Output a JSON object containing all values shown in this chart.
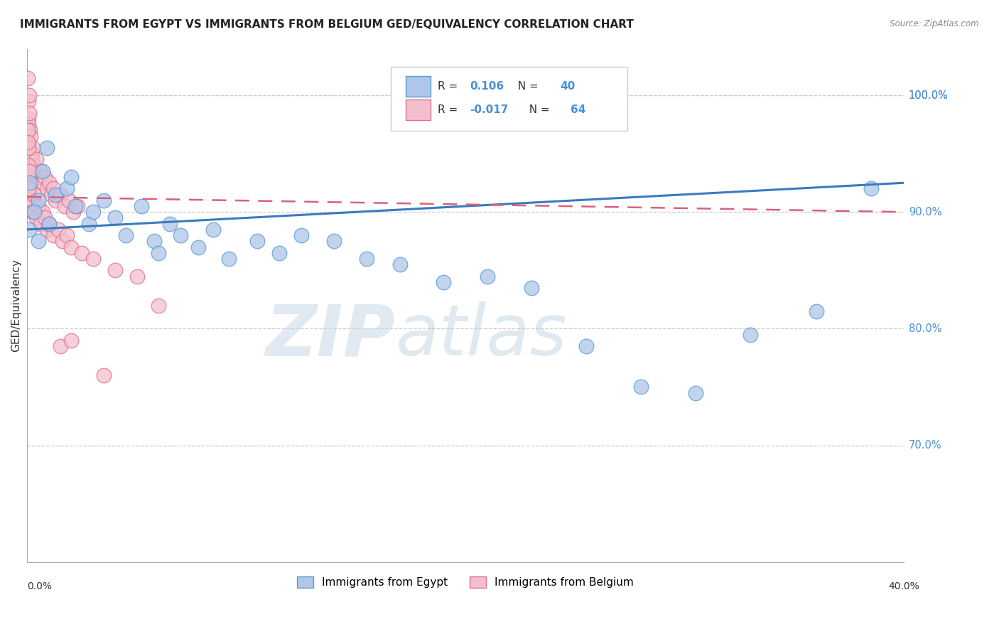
{
  "title": "IMMIGRANTS FROM EGYPT VS IMMIGRANTS FROM BELGIUM GED/EQUIVALENCY CORRELATION CHART",
  "source": "Source: ZipAtlas.com",
  "ylabel": "GED/Equivalency",
  "yticks": [
    70.0,
    80.0,
    90.0,
    100.0
  ],
  "ytick_labels": [
    "70.0%",
    "80.0%",
    "90.0%",
    "100.0%"
  ],
  "xmin": 0.0,
  "xmax": 40.0,
  "ymin": 60.0,
  "ymax": 104.0,
  "legend_r_egypt": "0.106",
  "legend_n_egypt": "40",
  "legend_r_belgium": "-0.017",
  "legend_n_belgium": "64",
  "egypt_color": "#aec6e8",
  "egypt_color_edge": "#5b9bd5",
  "belgium_color": "#f4bfcc",
  "belgium_color_edge": "#e07090",
  "trend_egypt_color": "#3a7abf",
  "trend_belgium_color": "#d9607a",
  "watermark_zip": "ZIP",
  "watermark_atlas": "atlas",
  "egypt_scatter": [
    [
      0.08,
      88.5
    ],
    [
      0.12,
      92.5
    ],
    [
      0.5,
      91.0
    ],
    [
      0.9,
      95.5
    ],
    [
      1.3,
      91.5
    ],
    [
      1.8,
      92.0
    ],
    [
      0.3,
      90.0
    ],
    [
      0.7,
      93.5
    ],
    [
      2.2,
      90.5
    ],
    [
      2.8,
      89.0
    ],
    [
      2.0,
      93.0
    ],
    [
      3.5,
      91.0
    ],
    [
      4.0,
      89.5
    ],
    [
      4.5,
      88.0
    ],
    [
      5.2,
      90.5
    ],
    [
      5.8,
      87.5
    ],
    [
      6.5,
      89.0
    ],
    [
      7.0,
      88.0
    ],
    [
      7.8,
      87.0
    ],
    [
      8.5,
      88.5
    ],
    [
      9.2,
      86.0
    ],
    [
      10.5,
      87.5
    ],
    [
      11.5,
      86.5
    ],
    [
      12.5,
      88.0
    ],
    [
      14.0,
      87.5
    ],
    [
      15.5,
      86.0
    ],
    [
      17.0,
      85.5
    ],
    [
      19.0,
      84.0
    ],
    [
      21.0,
      84.5
    ],
    [
      23.0,
      83.5
    ],
    [
      25.5,
      78.5
    ],
    [
      28.0,
      75.0
    ],
    [
      30.5,
      74.5
    ],
    [
      33.0,
      79.5
    ],
    [
      36.0,
      81.5
    ],
    [
      38.5,
      92.0
    ],
    [
      1.0,
      89.0
    ],
    [
      0.5,
      87.5
    ],
    [
      3.0,
      90.0
    ],
    [
      6.0,
      86.5
    ]
  ],
  "belgium_scatter": [
    [
      0.03,
      101.5
    ],
    [
      0.06,
      99.5
    ],
    [
      0.04,
      98.0
    ],
    [
      0.08,
      100.0
    ],
    [
      0.05,
      97.5
    ],
    [
      0.1,
      98.5
    ],
    [
      0.07,
      96.0
    ],
    [
      0.12,
      97.0
    ],
    [
      0.09,
      95.5
    ],
    [
      0.15,
      96.5
    ],
    [
      0.2,
      95.0
    ],
    [
      0.18,
      94.5
    ],
    [
      0.25,
      95.5
    ],
    [
      0.3,
      94.0
    ],
    [
      0.35,
      93.5
    ],
    [
      0.4,
      94.5
    ],
    [
      0.5,
      93.0
    ],
    [
      0.6,
      93.5
    ],
    [
      0.7,
      92.5
    ],
    [
      0.8,
      93.0
    ],
    [
      0.9,
      92.0
    ],
    [
      1.0,
      92.5
    ],
    [
      1.1,
      91.5
    ],
    [
      1.2,
      92.0
    ],
    [
      1.3,
      91.0
    ],
    [
      1.5,
      91.5
    ],
    [
      1.7,
      90.5
    ],
    [
      1.9,
      91.0
    ],
    [
      2.1,
      90.0
    ],
    [
      2.3,
      90.5
    ],
    [
      0.03,
      97.0
    ],
    [
      0.04,
      95.5
    ],
    [
      0.05,
      94.0
    ],
    [
      0.06,
      93.0
    ],
    [
      0.07,
      92.5
    ],
    [
      0.08,
      91.5
    ],
    [
      0.1,
      93.5
    ],
    [
      0.13,
      92.0
    ],
    [
      0.16,
      90.5
    ],
    [
      0.2,
      91.0
    ],
    [
      0.25,
      90.0
    ],
    [
      0.3,
      91.5
    ],
    [
      0.4,
      89.5
    ],
    [
      0.5,
      90.5
    ],
    [
      0.6,
      89.0
    ],
    [
      0.7,
      90.0
    ],
    [
      0.8,
      89.5
    ],
    [
      0.9,
      88.5
    ],
    [
      1.0,
      89.0
    ],
    [
      1.2,
      88.0
    ],
    [
      1.4,
      88.5
    ],
    [
      1.6,
      87.5
    ],
    [
      1.8,
      88.0
    ],
    [
      2.0,
      87.0
    ],
    [
      2.5,
      86.5
    ],
    [
      3.0,
      86.0
    ],
    [
      4.0,
      85.0
    ],
    [
      5.0,
      84.5
    ],
    [
      1.5,
      78.5
    ],
    [
      3.5,
      76.0
    ],
    [
      6.0,
      82.0
    ],
    [
      2.0,
      79.0
    ],
    [
      0.03,
      96.0
    ],
    [
      0.05,
      92.0
    ]
  ],
  "trend_egypt_x0": 0.0,
  "trend_egypt_y0": 88.5,
  "trend_egypt_x1": 40.0,
  "trend_egypt_y1": 92.5,
  "trend_belgium_x0": 0.0,
  "trend_belgium_y0": 91.3,
  "trend_belgium_x1": 40.0,
  "trend_belgium_y1": 90.0
}
